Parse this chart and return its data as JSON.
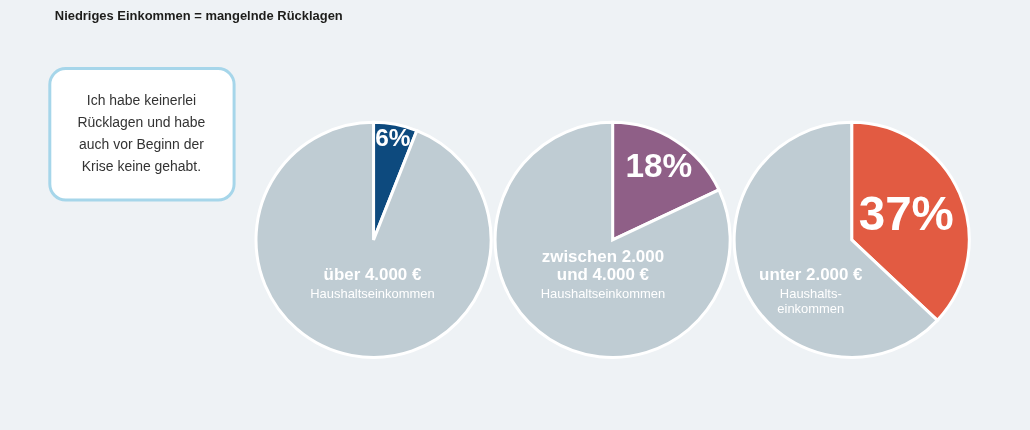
{
  "chart_data": [
    {
      "type": "other",
      "title": "Niedriges Einkommen = mangelnde Rücklagen",
      "annotations": [
        "Ich habe keinerlei\nRücklagen und habe\nauch vor Beginn der\nKrise keine gehabt."
      ]
    },
    {
      "type": "pie",
      "title": "über 4.000 €",
      "subtitle": "Haushaltseinkommen",
      "categories": [
        null,
        null
      ],
      "values": [
        6,
        94
      ],
      "colors": [
        "#0d4a7e",
        "#bfccd3"
      ],
      "value_labels": [
        "6%",
        null
      ]
    },
    {
      "type": "pie",
      "title": "zwischen 2.000\nund 4.000 €",
      "subtitle": "Haushaltseinkommen",
      "categories": [
        null,
        null
      ],
      "values": [
        18,
        82
      ],
      "colors": [
        "#8f5f87",
        "#bfccd3"
      ],
      "value_labels": [
        "18%",
        null
      ]
    },
    {
      "type": "pie",
      "title": "unter 2.000 €",
      "subtitle": "Haushalts-\neinkommen",
      "categories": [
        null,
        null
      ],
      "values": [
        37,
        63
      ],
      "colors": [
        "#e25b42",
        "#bfccd3"
      ],
      "value_labels": [
        "37%",
        null
      ]
    }
  ]
}
